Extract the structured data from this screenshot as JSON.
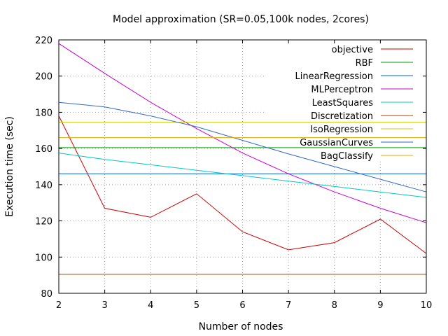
{
  "chart_data": {
    "type": "line",
    "title": "Model approximation (SR=0.05,100k nodes, 2cores)",
    "xlabel": "Number of nodes",
    "ylabel": "Execution time (sec)",
    "xlim": [
      2,
      10
    ],
    "ylim": [
      80,
      220
    ],
    "xticks": [
      2,
      3,
      4,
      5,
      6,
      7,
      8,
      9,
      10
    ],
    "yticks": [
      80,
      100,
      120,
      140,
      160,
      180,
      200,
      220
    ],
    "grid": true,
    "legend_position": "top-right",
    "series": [
      {
        "name": "objective",
        "color": "#cc0000",
        "x": [
          2,
          3,
          4,
          5,
          6,
          7,
          8,
          9,
          10
        ],
        "values": [
          178,
          127,
          122,
          135,
          114,
          104,
          108,
          121,
          102
        ]
      },
      {
        "name": "RBF",
        "color": "#00a000",
        "x": [
          2,
          10
        ],
        "values": [
          160.5,
          160.5
        ]
      },
      {
        "name": "LinearRegression",
        "color": "#0066cc",
        "x": [
          2,
          10
        ],
        "values": [
          146,
          146
        ]
      },
      {
        "name": "MLPerceptron",
        "color": "#cc00cc",
        "x": [
          2,
          3,
          4,
          5,
          6,
          7,
          8,
          9,
          10
        ],
        "values": [
          218,
          201.5,
          185.5,
          171,
          157.5,
          146,
          136,
          127,
          119
        ]
      },
      {
        "name": "LeastSquares",
        "color": "#00c8c8",
        "x": [
          2,
          3,
          4,
          5,
          6,
          7,
          8,
          9,
          10
        ],
        "values": [
          157.5,
          154,
          151,
          148,
          145,
          142,
          139,
          136,
          133
        ]
      },
      {
        "name": "Discretization",
        "color": "#b04000",
        "x": [
          2,
          10
        ],
        "values": [
          90.5,
          90.5
        ]
      },
      {
        "name": "IsoRegression",
        "color": "#c8c800",
        "x": [
          2,
          10
        ],
        "values": [
          174.5,
          174.5
        ]
      },
      {
        "name": "GaussianCurves",
        "color": "#3366cc",
        "x": [
          2,
          3,
          4,
          5,
          6,
          7,
          8,
          9,
          10
        ],
        "values": [
          185.5,
          183,
          178,
          172,
          164.5,
          157,
          150,
          143,
          136
        ]
      },
      {
        "name": "BagClassify",
        "color": "#e6a800",
        "x": [
          2,
          10
        ],
        "values": [
          166,
          166
        ]
      }
    ]
  }
}
